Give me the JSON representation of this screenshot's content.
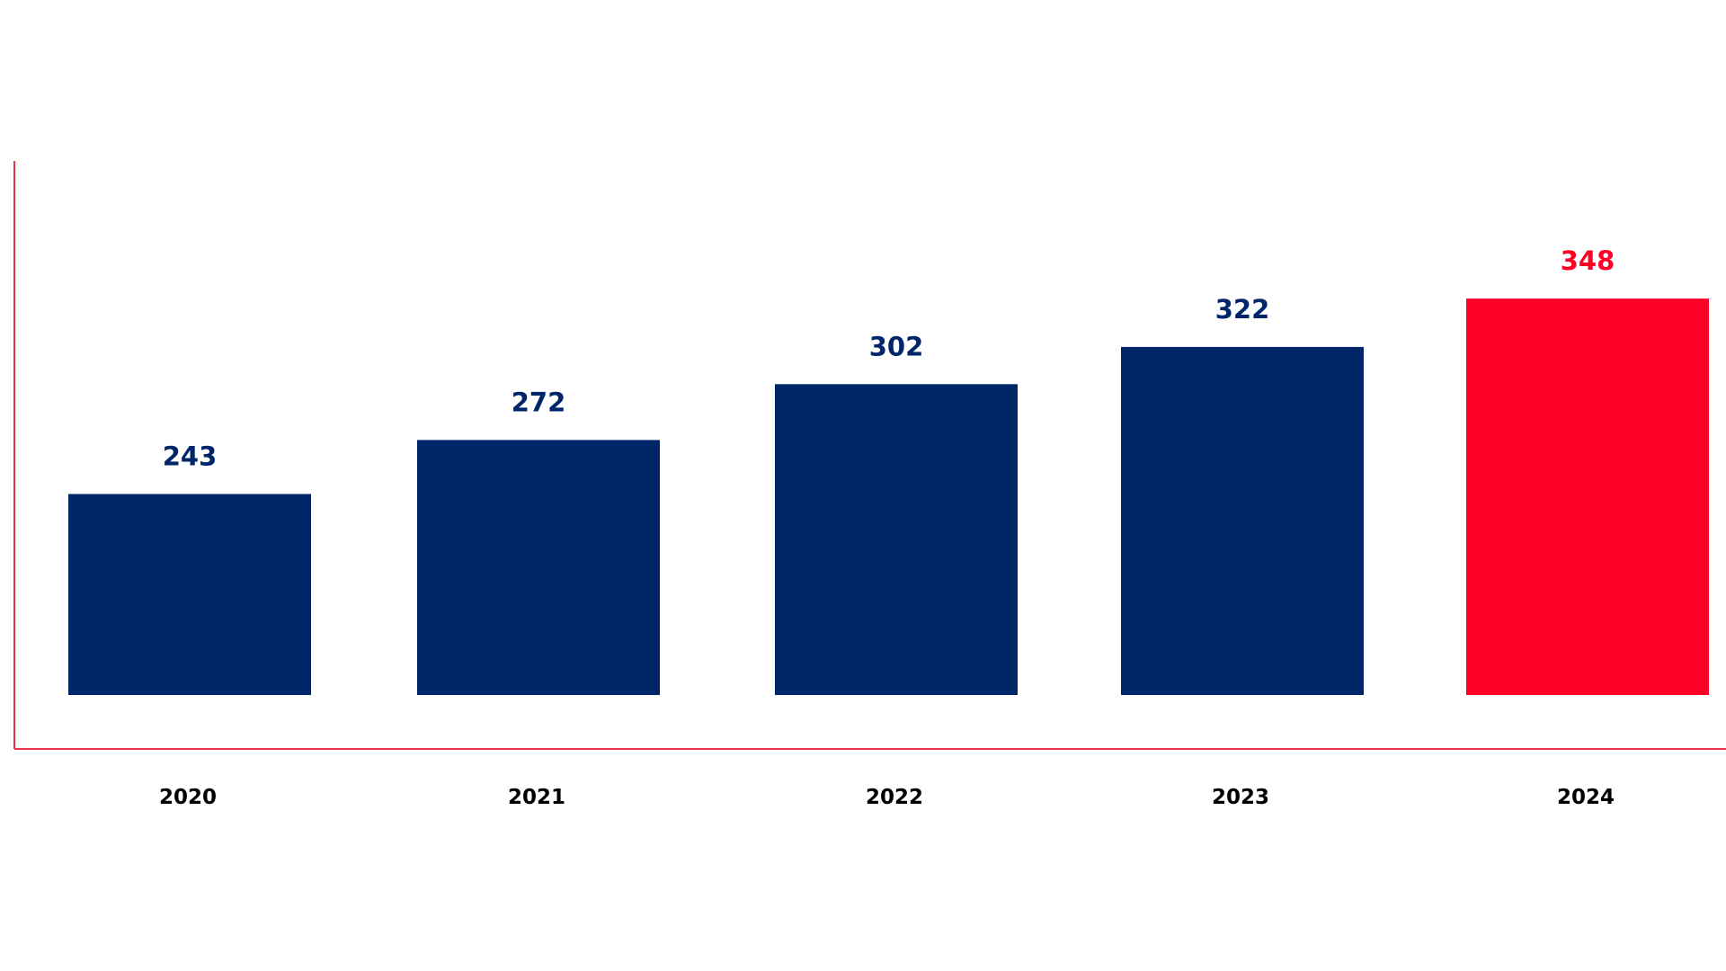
{
  "colors": {
    "primary_bar": "#00266a",
    "highlight_bar": "#ff0026",
    "axis_line": "#e8324c",
    "tick_text": "#000000"
  },
  "chart_data": {
    "type": "bar",
    "categories": [
      "2020",
      "2021",
      "2022",
      "2023",
      "2024"
    ],
    "values": [
      243,
      272,
      302,
      322,
      348
    ],
    "value_labels": [
      "243",
      "272",
      "302",
      "322",
      "348"
    ],
    "highlight_index": 4,
    "title": "",
    "xlabel": "",
    "ylabel": "",
    "ylim": [
      135,
      375
    ],
    "grid": false,
    "legend": "none"
  }
}
